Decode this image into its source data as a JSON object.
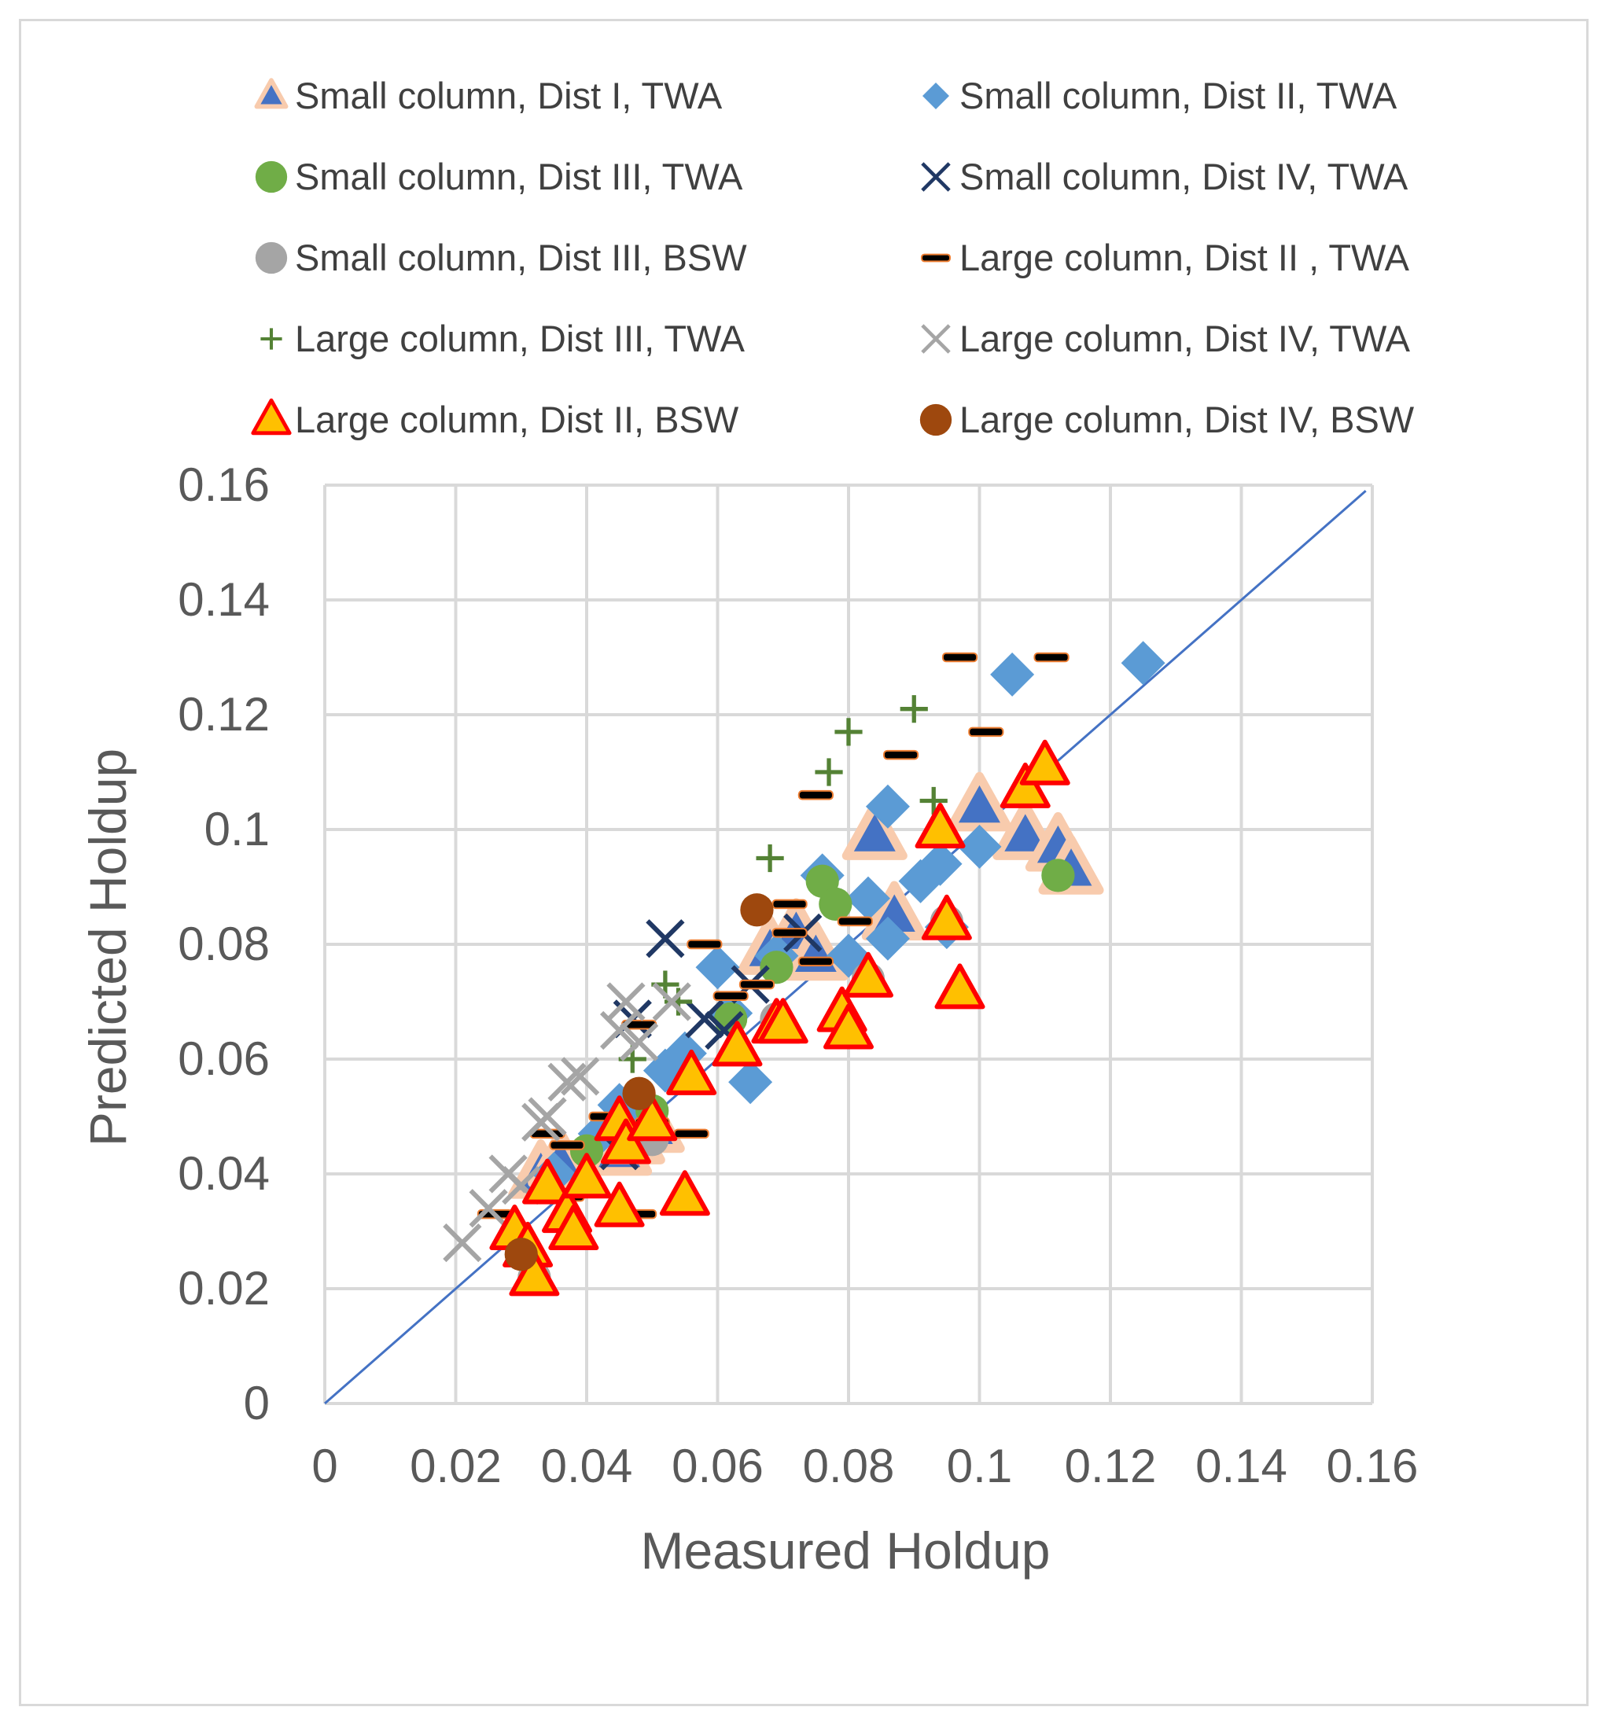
{
  "chart_data": {
    "type": "scatter",
    "title": "",
    "xlabel": "Measured  Holdup",
    "ylabel": "Predicted Holdup",
    "xlim": [
      0,
      0.16
    ],
    "ylim": [
      0,
      0.16
    ],
    "x_ticks": [
      "0",
      "0.02",
      "0.04",
      "0.06",
      "0.08",
      "0.1",
      "0.12",
      "0.14",
      "0.16"
    ],
    "y_ticks": [
      "0",
      "0.02",
      "0.04",
      "0.06",
      "0.08",
      "0.1",
      "0.12",
      "0.14",
      "0.16"
    ],
    "grid": true,
    "legend_position": "top",
    "reference_line": {
      "name": "parity line",
      "points": [
        [
          0,
          0
        ],
        [
          0.159,
          0.159
        ]
      ],
      "color": "#4472c4"
    },
    "series": [
      {
        "name": "Small column, Dist I, TWA",
        "marker": "triangle-outline",
        "color": "#4472c4",
        "edge": "#f8cbad",
        "points": [
          [
            0.033,
            0.04
          ],
          [
            0.036,
            0.042
          ],
          [
            0.045,
            0.044
          ],
          [
            0.047,
            0.046
          ],
          [
            0.05,
            0.048
          ],
          [
            0.068,
            0.079
          ],
          [
            0.072,
            0.082
          ],
          [
            0.075,
            0.078
          ],
          [
            0.084,
            0.099
          ],
          [
            0.087,
            0.085
          ],
          [
            0.1,
            0.104
          ],
          [
            0.107,
            0.099
          ],
          [
            0.112,
            0.097
          ],
          [
            0.114,
            0.093
          ]
        ]
      },
      {
        "name": "Small column, Dist II, TWA",
        "marker": "diamond",
        "color": "#5b9bd5",
        "points": [
          [
            0.035,
            0.04
          ],
          [
            0.042,
            0.047
          ],
          [
            0.045,
            0.052
          ],
          [
            0.048,
            0.05
          ],
          [
            0.052,
            0.058
          ],
          [
            0.055,
            0.061
          ],
          [
            0.06,
            0.076
          ],
          [
            0.062,
            0.068
          ],
          [
            0.065,
            0.056
          ],
          [
            0.069,
            0.078
          ],
          [
            0.076,
            0.092
          ],
          [
            0.08,
            0.078
          ],
          [
            0.083,
            0.088
          ],
          [
            0.086,
            0.104
          ],
          [
            0.086,
            0.081
          ],
          [
            0.091,
            0.091
          ],
          [
            0.094,
            0.094
          ],
          [
            0.095,
            0.083
          ],
          [
            0.1,
            0.097
          ],
          [
            0.105,
            0.127
          ],
          [
            0.125,
            0.129
          ]
        ]
      },
      {
        "name": "Small column, Dist III, TWA",
        "marker": "circle",
        "color": "#70ad47",
        "points": [
          [
            0.04,
            0.044
          ],
          [
            0.05,
            0.051
          ],
          [
            0.062,
            0.067
          ],
          [
            0.069,
            0.076
          ],
          [
            0.076,
            0.091
          ],
          [
            0.078,
            0.087
          ],
          [
            0.112,
            0.092
          ]
        ]
      },
      {
        "name": "Small column, Dist IV, TWA",
        "marker": "x",
        "color": "#203864",
        "points": [
          [
            0.045,
            0.044
          ],
          [
            0.047,
            0.067
          ],
          [
            0.052,
            0.081
          ],
          [
            0.058,
            0.067
          ],
          [
            0.061,
            0.065
          ],
          [
            0.065,
            0.073
          ],
          [
            0.073,
            0.082
          ]
        ]
      },
      {
        "name": "Small column, Dist III, BSW",
        "marker": "circle",
        "color": "#a5a5a5",
        "points": [
          [
            0.032,
            0.022
          ],
          [
            0.05,
            0.046
          ],
          [
            0.069,
            0.067
          ],
          [
            0.083,
            0.074
          ],
          [
            0.095,
            0.084
          ]
        ]
      },
      {
        "name": "Large column, Dist II , TWA",
        "marker": "dash",
        "color": "#000000",
        "edge": "#ed7d31",
        "points": [
          [
            0.026,
            0.033
          ],
          [
            0.034,
            0.047
          ],
          [
            0.037,
            0.036
          ],
          [
            0.037,
            0.045
          ],
          [
            0.043,
            0.05
          ],
          [
            0.048,
            0.033
          ],
          [
            0.048,
            0.066
          ],
          [
            0.05,
            0.049
          ],
          [
            0.056,
            0.047
          ],
          [
            0.058,
            0.08
          ],
          [
            0.062,
            0.071
          ],
          [
            0.066,
            0.073
          ],
          [
            0.071,
            0.082
          ],
          [
            0.071,
            0.087
          ],
          [
            0.075,
            0.077
          ],
          [
            0.075,
            0.106
          ],
          [
            0.081,
            0.084
          ],
          [
            0.088,
            0.113
          ],
          [
            0.097,
            0.13
          ],
          [
            0.101,
            0.117
          ],
          [
            0.111,
            0.13
          ]
        ]
      },
      {
        "name": "Large column, Dist III, TWA",
        "marker": "plus",
        "color": "#548235",
        "points": [
          [
            0.047,
            0.06
          ],
          [
            0.052,
            0.073
          ],
          [
            0.054,
            0.07
          ],
          [
            0.068,
            0.095
          ],
          [
            0.077,
            0.11
          ],
          [
            0.08,
            0.117
          ],
          [
            0.09,
            0.121
          ],
          [
            0.093,
            0.105
          ]
        ]
      },
      {
        "name": "Large column, Dist IV, TWA",
        "marker": "x",
        "color": "#a5a5a5",
        "points": [
          [
            0.021,
            0.028
          ],
          [
            0.025,
            0.034
          ],
          [
            0.028,
            0.04
          ],
          [
            0.03,
            0.038
          ],
          [
            0.033,
            0.049
          ],
          [
            0.034,
            0.05
          ],
          [
            0.037,
            0.056
          ],
          [
            0.039,
            0.057
          ],
          [
            0.045,
            0.065
          ],
          [
            0.046,
            0.07
          ],
          [
            0.048,
            0.063
          ],
          [
            0.053,
            0.07
          ]
        ]
      },
      {
        "name": "Large column, Dist II, BSW",
        "marker": "triangle",
        "color": "#ffc000",
        "edge": "#ff0000",
        "points": [
          [
            0.029,
            0.03
          ],
          [
            0.031,
            0.027
          ],
          [
            0.032,
            0.022
          ],
          [
            0.034,
            0.038
          ],
          [
            0.037,
            0.033
          ],
          [
            0.038,
            0.03
          ],
          [
            0.04,
            0.039
          ],
          [
            0.045,
            0.034
          ],
          [
            0.045,
            0.049
          ],
          [
            0.046,
            0.045
          ],
          [
            0.05,
            0.049
          ],
          [
            0.055,
            0.036
          ],
          [
            0.056,
            0.057
          ],
          [
            0.063,
            0.062
          ],
          [
            0.069,
            0.066
          ],
          [
            0.07,
            0.066
          ],
          [
            0.079,
            0.068
          ],
          [
            0.08,
            0.065
          ],
          [
            0.083,
            0.074
          ],
          [
            0.094,
            0.1
          ],
          [
            0.095,
            0.084
          ],
          [
            0.097,
            0.072
          ],
          [
            0.107,
            0.107
          ],
          [
            0.11,
            0.111
          ]
        ]
      },
      {
        "name": "Large column, Dist IV, BSW",
        "marker": "circle",
        "color": "#9e480e",
        "points": [
          [
            0.03,
            0.026
          ],
          [
            0.048,
            0.054
          ],
          [
            0.066,
            0.086
          ]
        ]
      }
    ]
  }
}
